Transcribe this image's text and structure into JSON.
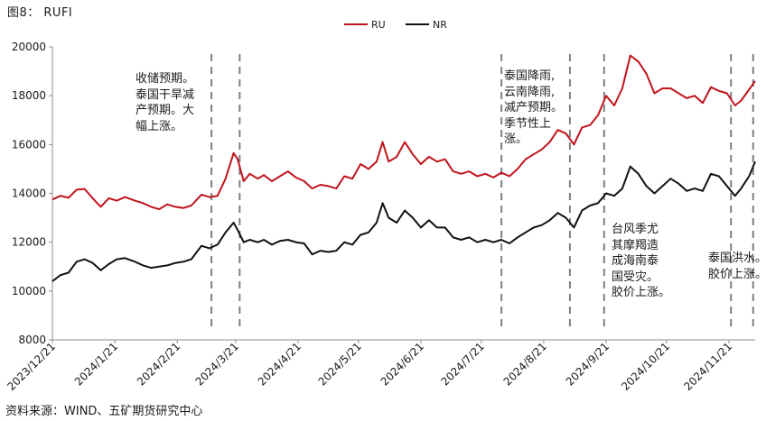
{
  "figure_title": "图8： RUFI",
  "source": "资料来源：WIND、五矿期货研究中心",
  "annotations": [
    {
      "id": "a1",
      "lines": [
        "收储预期。",
        "泰国干旱减",
        "产预期。大",
        "幅上涨。"
      ]
    },
    {
      "id": "a2",
      "lines": [
        "泰国降雨,",
        "云南降雨,",
        "减产预期。",
        "季节性上",
        "涨。"
      ]
    },
    {
      "id": "a3",
      "lines": [
        "台风季尤",
        "其摩羯造",
        "成海南泰",
        "国受灾。",
        "胶价上涨。"
      ]
    },
    {
      "id": "a4",
      "lines": [
        "泰国洪水。",
        "胶价上涨。"
      ]
    }
  ],
  "chart_data": {
    "type": "line",
    "title": "",
    "xlabel": "",
    "ylabel": "",
    "ylim": [
      8000,
      20000
    ],
    "yticks": [
      8000,
      10000,
      12000,
      14000,
      16000,
      18000,
      20000
    ],
    "xticks": [
      "2023/12/21",
      "2024/1/21",
      "2024/2/21",
      "2024/3/21",
      "2024/4/21",
      "2024/5/21",
      "2024/6/21",
      "2024/7/21",
      "2024/8/21",
      "2024/9/21",
      "2024/10/21",
      "2024/11/21"
    ],
    "x_range": [
      "2023-12-21",
      "2024-12-04"
    ],
    "legend_position": "top-center",
    "grid": false,
    "series": [
      {
        "name": "RU",
        "color": "#c0141c",
        "points": [
          [
            "2023-12-21",
            13750
          ],
          [
            "2023-12-25",
            13900
          ],
          [
            "2023-12-29",
            13820
          ],
          [
            "2024-01-02",
            14150
          ],
          [
            "2024-01-06",
            14180
          ],
          [
            "2024-01-10",
            13800
          ],
          [
            "2024-01-14",
            13450
          ],
          [
            "2024-01-18",
            13800
          ],
          [
            "2024-01-22",
            13700
          ],
          [
            "2024-01-26",
            13850
          ],
          [
            "2024-01-31",
            13700
          ],
          [
            "2024-02-04",
            13600
          ],
          [
            "2024-02-08",
            13450
          ],
          [
            "2024-02-12",
            13350
          ],
          [
            "2024-02-16",
            13550
          ],
          [
            "2024-02-20",
            13450
          ],
          [
            "2024-02-24",
            13400
          ],
          [
            "2024-02-28",
            13500
          ],
          [
            "2024-03-04",
            13950
          ],
          [
            "2024-03-08",
            13850
          ],
          [
            "2024-03-12",
            13900
          ],
          [
            "2024-03-16",
            14600
          ],
          [
            "2024-03-20",
            15650
          ],
          [
            "2024-03-22",
            15400
          ],
          [
            "2024-03-25",
            14500
          ],
          [
            "2024-03-28",
            14800
          ],
          [
            "2024-04-01",
            14600
          ],
          [
            "2024-04-04",
            14750
          ],
          [
            "2024-04-08",
            14500
          ],
          [
            "2024-04-12",
            14700
          ],
          [
            "2024-04-16",
            14900
          ],
          [
            "2024-04-20",
            14650
          ],
          [
            "2024-04-24",
            14500
          ],
          [
            "2024-04-28",
            14200
          ],
          [
            "2024-05-02",
            14350
          ],
          [
            "2024-05-06",
            14300
          ],
          [
            "2024-05-10",
            14200
          ],
          [
            "2024-05-14",
            14700
          ],
          [
            "2024-05-18",
            14600
          ],
          [
            "2024-05-22",
            15200
          ],
          [
            "2024-05-26",
            15000
          ],
          [
            "2024-05-30",
            15300
          ],
          [
            "2024-06-02",
            16100
          ],
          [
            "2024-06-05",
            15300
          ],
          [
            "2024-06-09",
            15500
          ],
          [
            "2024-06-13",
            16100
          ],
          [
            "2024-06-17",
            15600
          ],
          [
            "2024-06-21",
            15200
          ],
          [
            "2024-06-25",
            15500
          ],
          [
            "2024-06-29",
            15300
          ],
          [
            "2024-07-03",
            15400
          ],
          [
            "2024-07-07",
            14900
          ],
          [
            "2024-07-11",
            14800
          ],
          [
            "2024-07-15",
            14900
          ],
          [
            "2024-07-19",
            14700
          ],
          [
            "2024-07-23",
            14800
          ],
          [
            "2024-07-27",
            14650
          ],
          [
            "2024-07-31",
            14850
          ],
          [
            "2024-08-04",
            14700
          ],
          [
            "2024-08-08",
            15000
          ],
          [
            "2024-08-12",
            15400
          ],
          [
            "2024-08-16",
            15600
          ],
          [
            "2024-08-20",
            15800
          ],
          [
            "2024-08-24",
            16100
          ],
          [
            "2024-08-28",
            16600
          ],
          [
            "2024-09-01",
            16450
          ],
          [
            "2024-09-05",
            16000
          ],
          [
            "2024-09-09",
            16700
          ],
          [
            "2024-09-13",
            16800
          ],
          [
            "2024-09-17",
            17200
          ],
          [
            "2024-09-21",
            18000
          ],
          [
            "2024-09-25",
            17600
          ],
          [
            "2024-09-29",
            18300
          ],
          [
            "2024-10-03",
            19650
          ],
          [
            "2024-10-07",
            19400
          ],
          [
            "2024-10-11",
            18900
          ],
          [
            "2024-10-15",
            18100
          ],
          [
            "2024-10-19",
            18300
          ],
          [
            "2024-10-23",
            18300
          ],
          [
            "2024-10-27",
            18100
          ],
          [
            "2024-10-31",
            17900
          ],
          [
            "2024-11-04",
            18000
          ],
          [
            "2024-11-08",
            17700
          ],
          [
            "2024-11-12",
            18350
          ],
          [
            "2024-11-16",
            18200
          ],
          [
            "2024-11-20",
            18100
          ],
          [
            "2024-11-24",
            17600
          ],
          [
            "2024-11-27",
            17800
          ],
          [
            "2024-12-01",
            18250
          ],
          [
            "2024-12-04",
            18600
          ]
        ]
      },
      {
        "name": "NR",
        "color": "#111111",
        "points": [
          [
            "2023-12-21",
            10400
          ],
          [
            "2023-12-25",
            10650
          ],
          [
            "2023-12-29",
            10750
          ],
          [
            "2024-01-02",
            11200
          ],
          [
            "2024-01-06",
            11300
          ],
          [
            "2024-01-10",
            11150
          ],
          [
            "2024-01-14",
            10850
          ],
          [
            "2024-01-18",
            11100
          ],
          [
            "2024-01-22",
            11300
          ],
          [
            "2024-01-26",
            11350
          ],
          [
            "2024-01-31",
            11200
          ],
          [
            "2024-02-04",
            11050
          ],
          [
            "2024-02-08",
            10950
          ],
          [
            "2024-02-12",
            11000
          ],
          [
            "2024-02-16",
            11050
          ],
          [
            "2024-02-20",
            11150
          ],
          [
            "2024-02-24",
            11200
          ],
          [
            "2024-02-28",
            11300
          ],
          [
            "2024-03-04",
            11850
          ],
          [
            "2024-03-08",
            11750
          ],
          [
            "2024-03-12",
            11900
          ],
          [
            "2024-03-16",
            12400
          ],
          [
            "2024-03-20",
            12800
          ],
          [
            "2024-03-22",
            12500
          ],
          [
            "2024-03-25",
            12000
          ],
          [
            "2024-03-28",
            12100
          ],
          [
            "2024-04-01",
            12000
          ],
          [
            "2024-04-04",
            12100
          ],
          [
            "2024-04-08",
            11900
          ],
          [
            "2024-04-12",
            12050
          ],
          [
            "2024-04-16",
            12100
          ],
          [
            "2024-04-20",
            12000
          ],
          [
            "2024-04-24",
            11950
          ],
          [
            "2024-04-28",
            11500
          ],
          [
            "2024-05-02",
            11650
          ],
          [
            "2024-05-06",
            11600
          ],
          [
            "2024-05-10",
            11650
          ],
          [
            "2024-05-14",
            12000
          ],
          [
            "2024-05-18",
            11900
          ],
          [
            "2024-05-22",
            12300
          ],
          [
            "2024-05-26",
            12400
          ],
          [
            "2024-05-30",
            12800
          ],
          [
            "2024-06-02",
            13600
          ],
          [
            "2024-06-05",
            13000
          ],
          [
            "2024-06-09",
            12800
          ],
          [
            "2024-06-13",
            13300
          ],
          [
            "2024-06-17",
            13000
          ],
          [
            "2024-06-21",
            12600
          ],
          [
            "2024-06-25",
            12900
          ],
          [
            "2024-06-29",
            12600
          ],
          [
            "2024-07-03",
            12600
          ],
          [
            "2024-07-07",
            12200
          ],
          [
            "2024-07-11",
            12100
          ],
          [
            "2024-07-15",
            12200
          ],
          [
            "2024-07-19",
            12000
          ],
          [
            "2024-07-23",
            12100
          ],
          [
            "2024-07-27",
            12000
          ],
          [
            "2024-07-31",
            12100
          ],
          [
            "2024-08-04",
            11950
          ],
          [
            "2024-08-08",
            12200
          ],
          [
            "2024-08-12",
            12400
          ],
          [
            "2024-08-16",
            12600
          ],
          [
            "2024-08-20",
            12700
          ],
          [
            "2024-08-24",
            12900
          ],
          [
            "2024-08-28",
            13200
          ],
          [
            "2024-09-01",
            13000
          ],
          [
            "2024-09-05",
            12600
          ],
          [
            "2024-09-09",
            13300
          ],
          [
            "2024-09-13",
            13500
          ],
          [
            "2024-09-17",
            13600
          ],
          [
            "2024-09-21",
            14000
          ],
          [
            "2024-09-25",
            13900
          ],
          [
            "2024-09-29",
            14200
          ],
          [
            "2024-10-03",
            15100
          ],
          [
            "2024-10-07",
            14800
          ],
          [
            "2024-10-11",
            14300
          ],
          [
            "2024-10-15",
            14000
          ],
          [
            "2024-10-19",
            14300
          ],
          [
            "2024-10-23",
            14600
          ],
          [
            "2024-10-27",
            14400
          ],
          [
            "2024-10-31",
            14100
          ],
          [
            "2024-11-04",
            14200
          ],
          [
            "2024-11-08",
            14100
          ],
          [
            "2024-11-12",
            14800
          ],
          [
            "2024-11-16",
            14700
          ],
          [
            "2024-11-20",
            14300
          ],
          [
            "2024-11-24",
            13900
          ],
          [
            "2024-11-27",
            14200
          ],
          [
            "2024-12-01",
            14700
          ],
          [
            "2024-12-04",
            15300
          ]
        ]
      }
    ],
    "event_lines": [
      "2024-03-09",
      "2024-03-23",
      "2024-07-31",
      "2024-09-03",
      "2024-09-20",
      "2024-11-22",
      "2024-12-03"
    ]
  }
}
